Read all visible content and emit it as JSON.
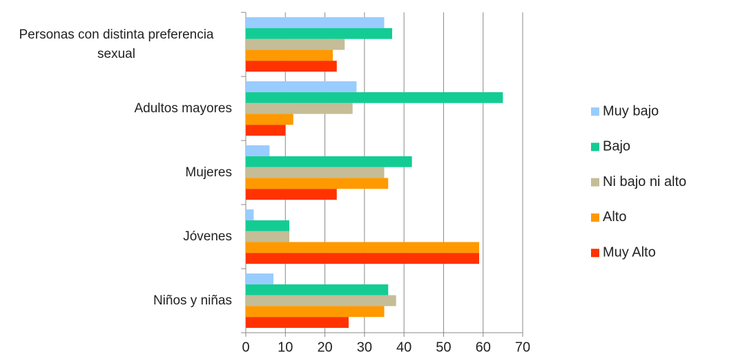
{
  "chart_data": {
    "type": "bar",
    "orientation": "horizontal",
    "categories": [
      "Personas con distinta preferencia sexual",
      "Adultos mayores",
      "Mujeres",
      "Jóvenes",
      "Niños y niñas"
    ],
    "series": [
      {
        "name": "Muy bajo",
        "color": "#99ccff",
        "values": [
          35,
          28,
          6,
          2,
          7
        ]
      },
      {
        "name": "Bajo",
        "color": "#13cc94",
        "values": [
          37,
          65,
          42,
          11,
          36
        ]
      },
      {
        "name": "Ni bajo ni alto",
        "color": "#c4bd97",
        "values": [
          25,
          27,
          35,
          11,
          38
        ]
      },
      {
        "name": "Alto",
        "color": "#ff9900",
        "values": [
          22,
          12,
          36,
          59,
          35
        ]
      },
      {
        "name": "Muy Alto",
        "color": "#ff3300",
        "values": [
          23,
          10,
          23,
          59,
          26
        ]
      }
    ],
    "xlim": [
      0,
      70
    ],
    "xticks": [
      0,
      10,
      20,
      30,
      40,
      50,
      60,
      70
    ],
    "grid": true,
    "legend": "right"
  }
}
